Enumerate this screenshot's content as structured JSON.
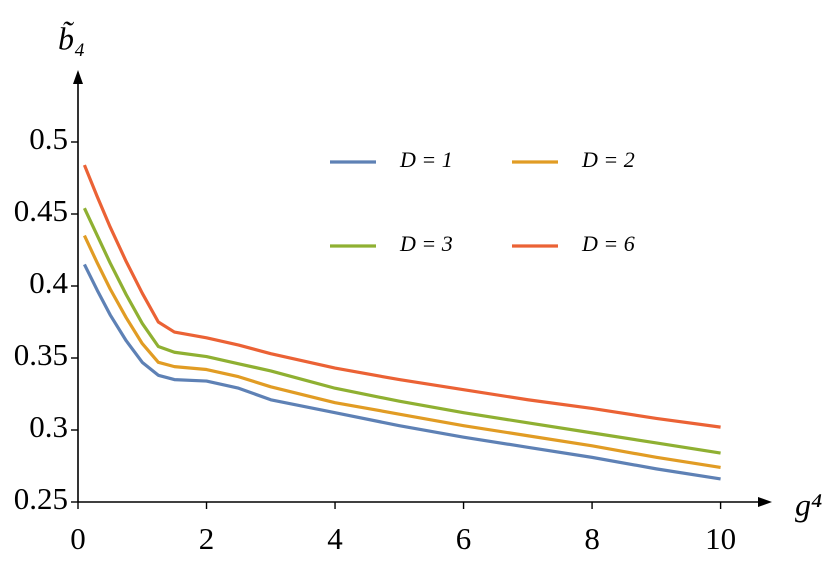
{
  "chart_data": {
    "type": "line",
    "xlabel": "g⁴",
    "ylabel": "b̃₄",
    "x": [
      0.1,
      0.3,
      0.5,
      0.75,
      1.0,
      1.25,
      1.5,
      2,
      2.5,
      3,
      4,
      5,
      6,
      7,
      8,
      9,
      10
    ],
    "series": [
      {
        "name": "D = 1",
        "color": "#5e81b5",
        "values": [
          0.415,
          0.397,
          0.38,
          0.362,
          0.347,
          0.338,
          0.335,
          0.334,
          0.329,
          0.321,
          0.312,
          0.303,
          0.295,
          0.288,
          0.281,
          0.273,
          0.266
        ]
      },
      {
        "name": "D = 2",
        "color": "#e19c24",
        "values": [
          0.435,
          0.416,
          0.398,
          0.378,
          0.36,
          0.347,
          0.344,
          0.342,
          0.337,
          0.33,
          0.319,
          0.311,
          0.303,
          0.296,
          0.289,
          0.281,
          0.274
        ]
      },
      {
        "name": "D = 3",
        "color": "#8fb032",
        "values": [
          0.454,
          0.435,
          0.416,
          0.394,
          0.374,
          0.358,
          0.354,
          0.351,
          0.346,
          0.341,
          0.329,
          0.32,
          0.312,
          0.305,
          0.298,
          0.291,
          0.284
        ]
      },
      {
        "name": "D = 6",
        "color": "#eb6235",
        "values": [
          0.484,
          0.462,
          0.441,
          0.417,
          0.395,
          0.375,
          0.368,
          0.364,
          0.359,
          0.353,
          0.343,
          0.335,
          0.328,
          0.321,
          0.315,
          0.308,
          0.302
        ]
      }
    ],
    "xlim": [
      0,
      10.8
    ],
    "ylim": [
      0.25,
      0.55
    ],
    "xticks": [
      0,
      2,
      4,
      6,
      8,
      10
    ],
    "yticks": [
      0.25,
      0.3,
      0.35,
      0.4,
      0.45,
      0.5
    ],
    "grid": false
  }
}
